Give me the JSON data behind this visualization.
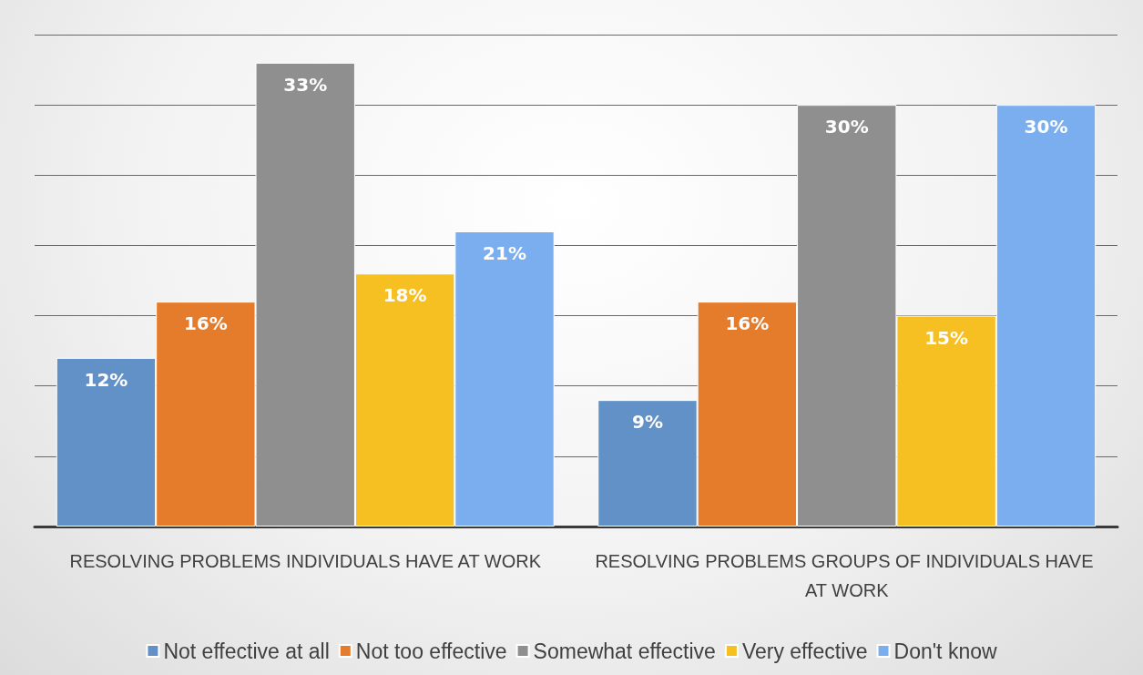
{
  "chart_data": {
    "type": "bar",
    "categories": [
      "RESOLVING PROBLEMS INDIVIDUALS HAVE AT WORK",
      "RESOLVING PROBLEMS GROUPS OF INDIVIDUALS HAVE AT WORK"
    ],
    "series": [
      {
        "name": "Not effective at all",
        "color": "#6191c6",
        "values": [
          12,
          9
        ],
        "value_labels": [
          "12%",
          "9%"
        ]
      },
      {
        "name": "Not too effective",
        "color": "#e57c2c",
        "values": [
          16,
          16
        ],
        "value_labels": [
          "16%",
          "16%"
        ]
      },
      {
        "name": "Somewhat effective",
        "color": "#8f8f8f",
        "values": [
          33,
          30
        ],
        "value_labels": [
          "33%",
          "30%"
        ]
      },
      {
        "name": "Very effective",
        "color": "#f6bf22",
        "values": [
          18,
          15
        ],
        "value_labels": [
          "18%",
          "15%"
        ]
      },
      {
        "name": "Don't know",
        "color": "#7aaeee",
        "values": [
          21,
          30
        ],
        "value_labels": [
          "21%",
          "30%"
        ]
      }
    ],
    "ylim": [
      0,
      35
    ],
    "yticks": [
      {
        "value": 0,
        "label": null
      },
      {
        "value": 5,
        "label": null
      },
      {
        "value": 10,
        "label": null
      },
      {
        "value": 15,
        "label": null
      },
      {
        "value": 20,
        "label": null
      },
      {
        "value": 25,
        "label": null
      },
      {
        "value": 30,
        "label": null
      },
      {
        "value": 35,
        "label": null
      }
    ],
    "tick_labels": "x",
    "grid": "y",
    "legend": "bottom"
  }
}
